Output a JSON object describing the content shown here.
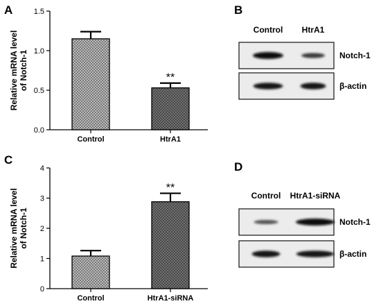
{
  "chart_data": [
    {
      "panel": "A",
      "type": "bar",
      "ylabel_lines": [
        "Relative mRNA level",
        "of Notch-1"
      ],
      "categories": [
        "Control",
        "HtrA1"
      ],
      "values": [
        1.15,
        0.53
      ],
      "errors": [
        0.09,
        0.06
      ],
      "significance": [
        "",
        "**"
      ],
      "ylim": [
        0,
        1.5
      ],
      "yticks": [
        "0.0",
        "0.5",
        "1.0",
        "1.5"
      ],
      "grid": false,
      "fills": [
        "light-crosshatch",
        "dark-crosshatch"
      ]
    },
    {
      "panel": "C",
      "type": "bar",
      "ylabel_lines": [
        "Relative mRNA level",
        "of Notch-1"
      ],
      "categories": [
        "Control",
        "HtrA1-siRNA"
      ],
      "values": [
        1.08,
        2.88
      ],
      "errors": [
        0.18,
        0.28
      ],
      "significance": [
        "",
        "**"
      ],
      "ylim": [
        0,
        4
      ],
      "yticks": [
        "0",
        "1",
        "2",
        "3",
        "4"
      ],
      "grid": false,
      "fills": [
        "light-crosshatch",
        "dark-crosshatch"
      ]
    }
  ],
  "blots": [
    {
      "panel": "B",
      "lanes": [
        "Control",
        "HtrA1"
      ],
      "rows": [
        {
          "label": "Notch-1",
          "intensity": [
            1.0,
            0.55
          ]
        },
        {
          "label": "β-actin",
          "intensity": [
            0.9,
            0.9
          ]
        }
      ]
    },
    {
      "panel": "D",
      "lanes": [
        "Control",
        "HtrA1-siRNA"
      ],
      "rows": [
        {
          "label": "Notch-1",
          "intensity": [
            0.35,
            1.0
          ]
        },
        {
          "label": "β-actin",
          "intensity": [
            0.9,
            0.9
          ]
        }
      ]
    }
  ]
}
